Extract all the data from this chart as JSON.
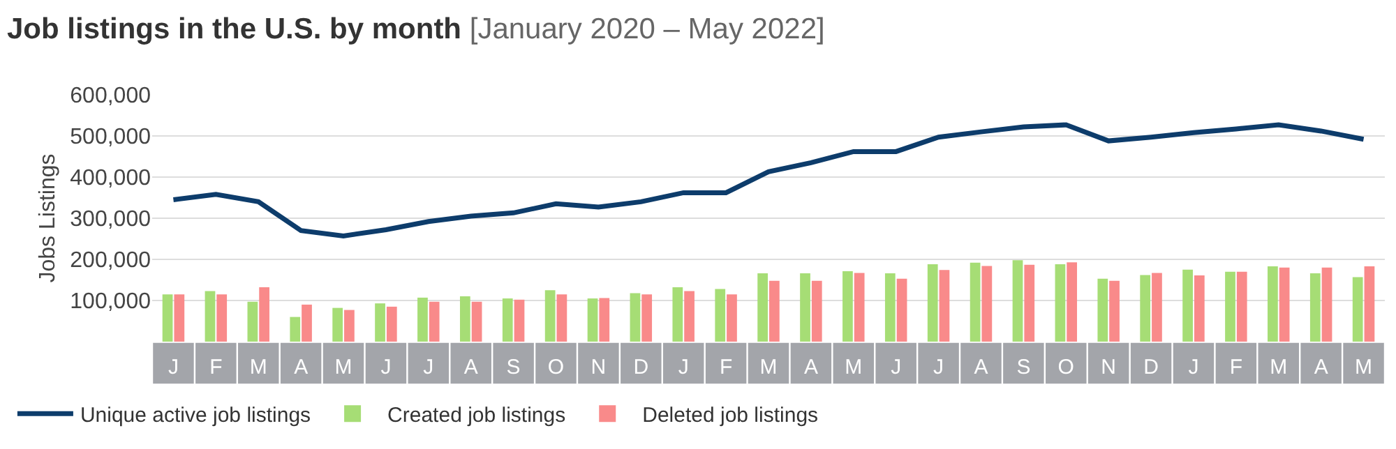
{
  "chart_data": {
    "type": "bar",
    "title": "Job listings in the U.S. by month",
    "subtitle": "[January 2020 – May 2022]",
    "ylabel": "Jobs Listings",
    "categories": [
      "J",
      "F",
      "M",
      "A",
      "M",
      "J",
      "J",
      "A",
      "S",
      "O",
      "N",
      "D",
      "J",
      "F",
      "M",
      "A",
      "M",
      "J",
      "J",
      "A",
      "S",
      "O",
      "N",
      "D",
      "J",
      "F",
      "M",
      "A",
      "M"
    ],
    "ylim": [
      0,
      600000
    ],
    "yticks": [
      {
        "value": 100000,
        "label": "100,000"
      },
      {
        "value": 200000,
        "label": "200,000"
      },
      {
        "value": 300000,
        "label": "300,000"
      },
      {
        "value": 400000,
        "label": "400,000"
      },
      {
        "value": 500000,
        "label": "500,000"
      },
      {
        "value": 600000,
        "label": "600,000"
      }
    ],
    "grid": "y",
    "legend": "bottom left",
    "series": [
      {
        "name": "Unique active job listings",
        "type": "line",
        "color": "#0d3c6b",
        "values": [
          345000,
          358000,
          340000,
          270000,
          257000,
          272000,
          292000,
          305000,
          313000,
          335000,
          327000,
          340000,
          362000,
          362000,
          413000,
          435000,
          462000,
          462000,
          497000,
          510000,
          522000,
          527000,
          488000,
          497000,
          508000,
          517000,
          527000,
          512000,
          492000
        ]
      },
      {
        "name": "Created job listings",
        "color": "#a6dd75",
        "values": [
          115000,
          123000,
          97000,
          60000,
          82000,
          93000,
          107000,
          110000,
          105000,
          125000,
          105000,
          118000,
          132000,
          128000,
          166000,
          166000,
          171000,
          166000,
          188000,
          192000,
          198000,
          188000,
          153000,
          162000,
          175000,
          170000,
          183000,
          166000,
          157000
        ]
      },
      {
        "name": "Deleted job listings",
        "color": "#f98a8a",
        "values": [
          115000,
          115000,
          132000,
          90000,
          77000,
          85000,
          97000,
          97000,
          102000,
          115000,
          106000,
          115000,
          123000,
          115000,
          148000,
          148000,
          167000,
          153000,
          174000,
          184000,
          187000,
          193000,
          148000,
          167000,
          161000,
          170000,
          180000,
          180000,
          183000
        ]
      }
    ]
  }
}
